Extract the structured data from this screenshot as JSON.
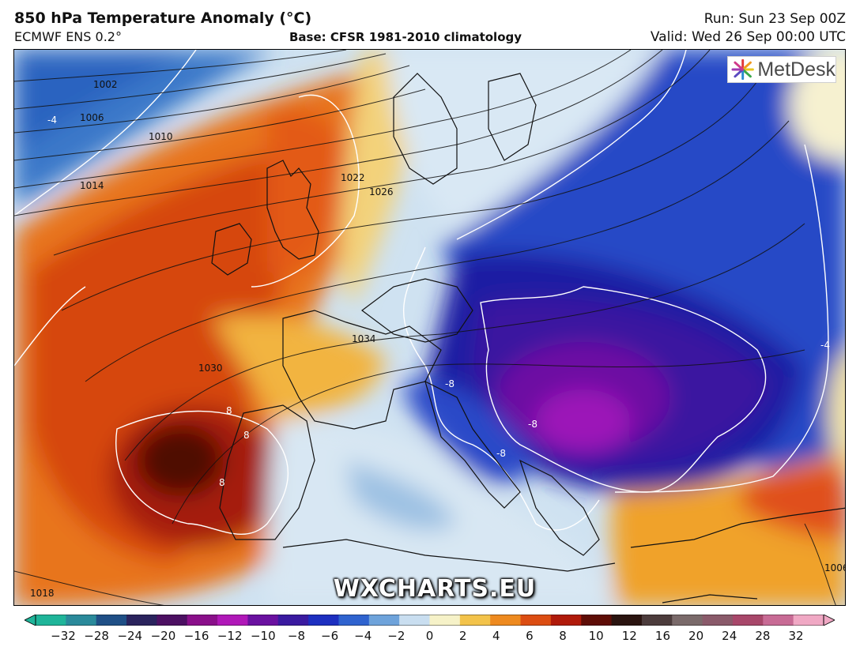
{
  "header": {
    "title": "850 hPa Temperature Anomaly (°C)",
    "model": "ECMWF ENS 0.2°",
    "base": "Base: CFSR 1981-2010 climatology",
    "run": "Run: Sun 23 Sep 00Z",
    "valid": "Valid: Wed 26 Sep 00:00 UTC"
  },
  "logo": {
    "text": "MetDesk",
    "icon": "metdesk-star-logo"
  },
  "watermark": "WXCHARTS.EU",
  "map": {
    "isobar_labels": [
      "1002",
      "1006",
      "1010",
      "1014",
      "1018",
      "1022",
      "1026",
      "1030",
      "1034",
      "1006"
    ],
    "anomaly_labels": [
      "-4",
      "-8",
      "8",
      "8",
      "8",
      "-4",
      "-8",
      "-8"
    ]
  },
  "colorbar": {
    "ticks": [
      "−32",
      "−28",
      "−24",
      "−20",
      "−16",
      "−12",
      "−10",
      "−8",
      "−6",
      "−4",
      "−2",
      "0",
      "2",
      "4",
      "6",
      "8",
      "10",
      "12",
      "16",
      "20",
      "24",
      "28",
      "32"
    ],
    "colors": [
      "#1fb59a",
      "#2a8a9b",
      "#1f4f86",
      "#2a235d",
      "#4c1062",
      "#8a0f8a",
      "#b018b8",
      "#6a11a0",
      "#3a1aa0",
      "#1d2fc0",
      "#2f63cf",
      "#6ea3db",
      "#c9def0",
      "#f6f2c8",
      "#f3c34a",
      "#ee8a1f",
      "#dc4d12",
      "#b01a0a",
      "#5e0d06",
      "#2a1410",
      "#4c3c3c",
      "#7a6a6a",
      "#8a5a6a",
      "#a8476a",
      "#c86b95",
      "#f0a8c4"
    ]
  }
}
